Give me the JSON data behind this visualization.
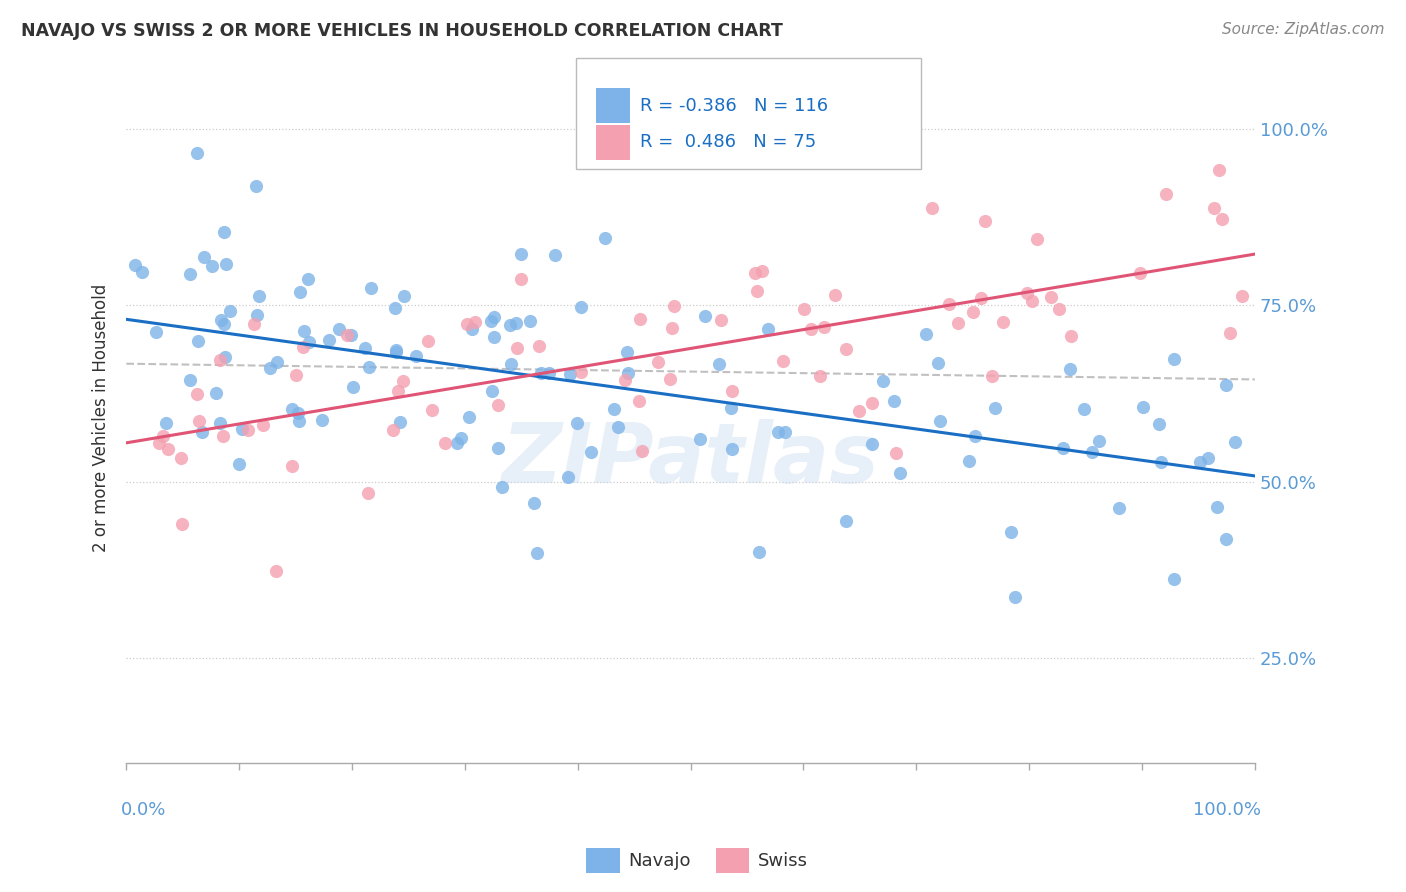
{
  "title": "NAVAJO VS SWISS 2 OR MORE VEHICLES IN HOUSEHOLD CORRELATION CHART",
  "source": "Source: ZipAtlas.com",
  "ylabel": "2 or more Vehicles in Household",
  "ytick_labels": [
    "25.0%",
    "50.0%",
    "75.0%",
    "100.0%"
  ],
  "ytick_values": [
    0.25,
    0.5,
    0.75,
    1.0
  ],
  "navajo_R": -0.386,
  "navajo_N": 116,
  "swiss_R": 0.486,
  "swiss_N": 75,
  "navajo_color": "#7db3e8",
  "swiss_color": "#f4a0b0",
  "navajo_line_color": "#1a6fc4",
  "swiss_line_color": "#e05575",
  "overall_line_color": "#c0c0c0",
  "bg_color": "#ffffff",
  "watermark": "ZIPatlas",
  "legend_navajo_text": "R = -0.386   N = 116",
  "legend_swiss_text": "R =  0.486   N = 75",
  "legend_text_color": "#1a6fc4",
  "axis_label_color": "#5b9bd5",
  "title_color": "#333333",
  "source_color": "#888888",
  "ylabel_color": "#333333"
}
